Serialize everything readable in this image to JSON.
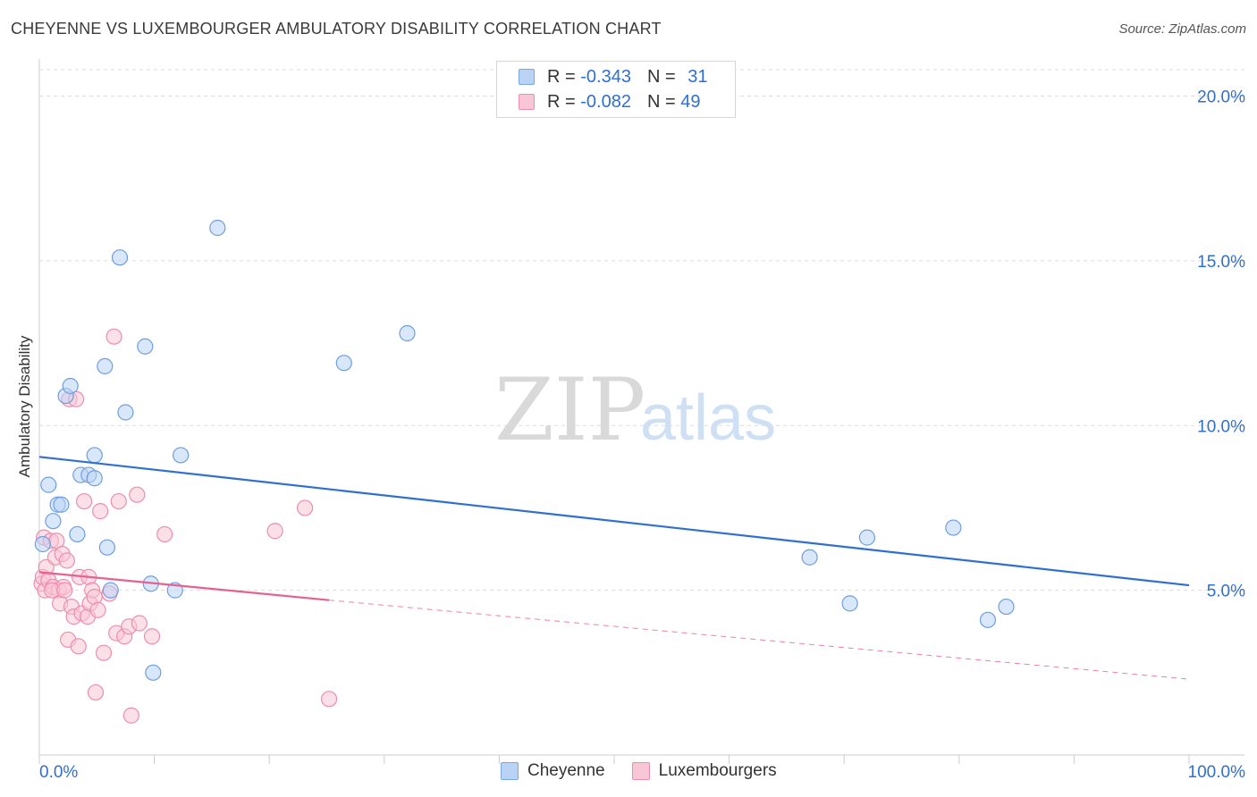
{
  "title": "CHEYENNE VS LUXEMBOURGER AMBULATORY DISABILITY CORRELATION CHART",
  "source": "Source: ZipAtlas.com",
  "watermark": {
    "zip": "ZIP",
    "atlas": "atlas"
  },
  "legend": {
    "rows": [
      {
        "r_label": "R =",
        "r_value": "-0.343",
        "n_label": "N =",
        "n_value": "31"
      },
      {
        "r_label": "R =",
        "r_value": "-0.082",
        "n_label": "N =",
        "n_value": "49"
      }
    ]
  },
  "bottom_legend": [
    "Cheyenne",
    "Luxembourgers"
  ],
  "colors": {
    "cheyenne_fill": "#b9d3f5",
    "cheyenne_stroke": "#6e9fdc",
    "cheyenne_line": "#2f6fd1",
    "lux_fill": "#f9c6d6",
    "lux_stroke": "#ec8db0",
    "lux_line": "#e8608e",
    "tick_label": "#2f6fd1"
  },
  "chart_data": {
    "type": "scatter",
    "title": "CHEYENNE VS LUXEMBOURGER AMBULATORY DISABILITY CORRELATION CHART",
    "xlabel": "",
    "ylabel": "Ambulatory Disability",
    "xlim": [
      0,
      100
    ],
    "ylim": [
      0,
      20.8
    ],
    "x_tick_labels": [
      "0.0%",
      "100.0%"
    ],
    "y_ticks": [
      5,
      10,
      15,
      20
    ],
    "y_tick_labels": [
      "5.0%",
      "10.0%",
      "15.0%",
      "20.0%"
    ],
    "series": [
      {
        "name": "Cheyenne",
        "points": [
          [
            0.3,
            6.4
          ],
          [
            0.8,
            8.2
          ],
          [
            1.2,
            7.1
          ],
          [
            1.6,
            7.6
          ],
          [
            1.9,
            7.6
          ],
          [
            2.3,
            10.9
          ],
          [
            2.7,
            11.2
          ],
          [
            3.3,
            6.7
          ],
          [
            3.6,
            8.5
          ],
          [
            4.3,
            8.5
          ],
          [
            4.8,
            8.4
          ],
          [
            4.8,
            9.1
          ],
          [
            5.7,
            11.8
          ],
          [
            5.9,
            6.3
          ],
          [
            6.2,
            5.0
          ],
          [
            7.0,
            15.1
          ],
          [
            7.5,
            10.4
          ],
          [
            9.2,
            12.4
          ],
          [
            9.7,
            5.2
          ],
          [
            9.9,
            2.5
          ],
          [
            11.8,
            5.0
          ],
          [
            12.3,
            9.1
          ],
          [
            15.5,
            16.0
          ],
          [
            26.5,
            11.9
          ],
          [
            32.0,
            12.8
          ],
          [
            67.0,
            6.0
          ],
          [
            70.5,
            4.6
          ],
          [
            72.0,
            6.6
          ],
          [
            79.5,
            6.9
          ],
          [
            82.5,
            4.1
          ],
          [
            84.1,
            4.5
          ]
        ],
        "trend": {
          "x": [
            0,
            100
          ],
          "y": [
            9.05,
            5.15
          ]
        }
      },
      {
        "name": "Luxembourgers",
        "points": [
          [
            0.2,
            5.2
          ],
          [
            0.3,
            5.4
          ],
          [
            0.4,
            6.6
          ],
          [
            0.5,
            5.0
          ],
          [
            0.6,
            5.7
          ],
          [
            0.8,
            5.3
          ],
          [
            1.0,
            6.5
          ],
          [
            1.2,
            5.1
          ],
          [
            1.4,
            6.0
          ],
          [
            1.5,
            6.5
          ],
          [
            1.7,
            5.0
          ],
          [
            1.8,
            4.6
          ],
          [
            2.0,
            6.1
          ],
          [
            2.1,
            5.1
          ],
          [
            2.4,
            5.9
          ],
          [
            2.5,
            3.5
          ],
          [
            2.6,
            10.8
          ],
          [
            2.8,
            4.5
          ],
          [
            3.0,
            4.2
          ],
          [
            3.2,
            10.8
          ],
          [
            3.4,
            3.3
          ],
          [
            3.5,
            5.4
          ],
          [
            3.7,
            4.3
          ],
          [
            3.9,
            7.7
          ],
          [
            4.2,
            4.2
          ],
          [
            4.3,
            5.4
          ],
          [
            4.4,
            4.6
          ],
          [
            4.6,
            5.0
          ],
          [
            4.8,
            4.8
          ],
          [
            4.9,
            1.9
          ],
          [
            5.1,
            4.4
          ],
          [
            5.3,
            7.4
          ],
          [
            5.6,
            3.1
          ],
          [
            6.1,
            4.9
          ],
          [
            6.5,
            12.7
          ],
          [
            6.7,
            3.7
          ],
          [
            6.9,
            7.7
          ],
          [
            7.4,
            3.6
          ],
          [
            7.8,
            3.9
          ],
          [
            8.0,
            1.2
          ],
          [
            8.5,
            7.9
          ],
          [
            8.7,
            4.0
          ],
          [
            9.8,
            3.6
          ],
          [
            10.9,
            6.7
          ],
          [
            20.5,
            6.8
          ],
          [
            23.1,
            7.5
          ],
          [
            25.2,
            1.7
          ],
          [
            1.1,
            5.0
          ],
          [
            2.2,
            5.0
          ]
        ],
        "trend": {
          "x": [
            0,
            25.2
          ],
          "y": [
            5.55,
            4.7
          ]
        },
        "trend_dashed": {
          "x": [
            25.2,
            100
          ],
          "y": [
            4.7,
            2.3
          ]
        }
      }
    ]
  }
}
